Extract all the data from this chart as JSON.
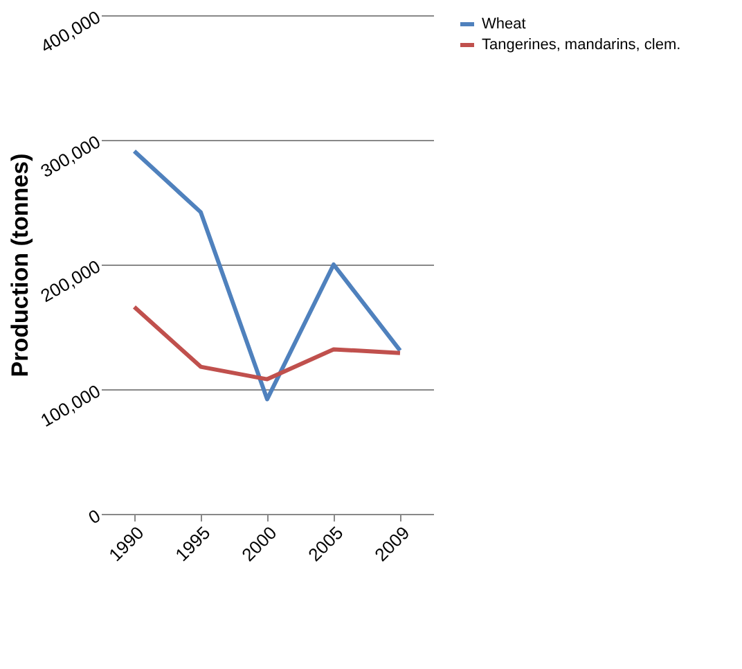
{
  "chart_data": {
    "type": "line",
    "ylabel": "Production (tonnes)",
    "categories": [
      "1990",
      "1995",
      "2000",
      "2005",
      "2009"
    ],
    "series": [
      {
        "name": "Wheat",
        "color": "#4f81bd",
        "values": [
          291000,
          242000,
          92000,
          200000,
          131000
        ]
      },
      {
        "name": "Tangerines, mandarins, clem.",
        "color": "#c0504d",
        "values": [
          166000,
          118000,
          108000,
          132000,
          129000
        ]
      }
    ],
    "ylim": [
      0,
      400000
    ],
    "yticks": [
      0,
      {
        "value": 100000,
        "label": "100,000"
      },
      {
        "value": 200000,
        "label": "200,000"
      },
      {
        "value": 300000,
        "label": "300,000"
      },
      {
        "value": 400000,
        "label": "400,000"
      }
    ],
    "grid": "y",
    "legend": "right",
    "marker": "none",
    "line_style": "solid"
  }
}
